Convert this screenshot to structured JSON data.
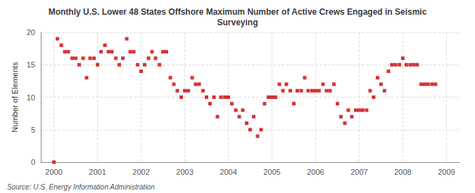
{
  "chart_data": {
    "type": "scatter",
    "title": "Monthly U.S. Lower 48 States Offshore Maximum Number of Active Crews Engaged in Seismic\nSurveying",
    "ylabel": "Number of Elements",
    "annotation": "Source: U.S. Energy Information Administration",
    "color": "#cc0000",
    "marker": "square",
    "grid": true,
    "xlim": [
      1999.7,
      2009.3
    ],
    "ylim": [
      0,
      20
    ],
    "xticks": [
      2000,
      2001,
      2002,
      2003,
      2004,
      2005,
      2006,
      2007,
      2008,
      2009
    ],
    "yticks": [
      0,
      5,
      10,
      15,
      20
    ],
    "x": [
      2000.0,
      2000.08,
      2000.17,
      2000.25,
      2000.33,
      2000.42,
      2000.5,
      2000.58,
      2000.67,
      2000.75,
      2000.83,
      2000.92,
      2001.0,
      2001.08,
      2001.17,
      2001.25,
      2001.33,
      2001.42,
      2001.5,
      2001.58,
      2001.67,
      2001.75,
      2001.83,
      2001.92,
      2002.0,
      2002.08,
      2002.17,
      2002.25,
      2002.33,
      2002.42,
      2002.5,
      2002.58,
      2002.67,
      2002.75,
      2002.83,
      2002.92,
      2003.0,
      2003.08,
      2003.17,
      2003.25,
      2003.33,
      2003.42,
      2003.5,
      2003.58,
      2003.67,
      2003.75,
      2003.83,
      2003.92,
      2004.0,
      2004.08,
      2004.17,
      2004.25,
      2004.33,
      2004.42,
      2004.5,
      2004.58,
      2004.67,
      2004.75,
      2004.83,
      2004.92,
      2005.0,
      2005.08,
      2005.17,
      2005.25,
      2005.33,
      2005.42,
      2005.5,
      2005.58,
      2005.67,
      2005.75,
      2005.83,
      2005.92,
      2006.0,
      2006.08,
      2006.17,
      2006.25,
      2006.33,
      2006.42,
      2006.5,
      2006.58,
      2006.67,
      2006.75,
      2006.83,
      2006.92,
      2007.0,
      2007.08,
      2007.17,
      2007.25,
      2007.33,
      2007.42,
      2007.5,
      2007.58,
      2007.67,
      2007.75,
      2007.83,
      2007.92,
      2008.0,
      2008.08,
      2008.17,
      2008.25,
      2008.33,
      2008.42,
      2008.5,
      2008.58,
      2008.67,
      2008.75
    ],
    "values": [
      0,
      19,
      18,
      17,
      17,
      16,
      16,
      15,
      16,
      13,
      16,
      16,
      15,
      17,
      18,
      17,
      17,
      16,
      15,
      16,
      19,
      17,
      17,
      15,
      14,
      15,
      16,
      17,
      16,
      15,
      17,
      17,
      13,
      12,
      11,
      10,
      11,
      11,
      13,
      12,
      12,
      11,
      10,
      9,
      10,
      7,
      10,
      10,
      10,
      9,
      8,
      7,
      8,
      6,
      5,
      7,
      4,
      5,
      9,
      10,
      10,
      10,
      12,
      11,
      12,
      11,
      9,
      11,
      11,
      13,
      11,
      11,
      11,
      11,
      12,
      11,
      11,
      12,
      9,
      7,
      6,
      8,
      7,
      8,
      8,
      8,
      8,
      11,
      10,
      13,
      12,
      11,
      14,
      15,
      15,
      15,
      16,
      15,
      15,
      15,
      15,
      12,
      12,
      12,
      12,
      12
    ]
  }
}
